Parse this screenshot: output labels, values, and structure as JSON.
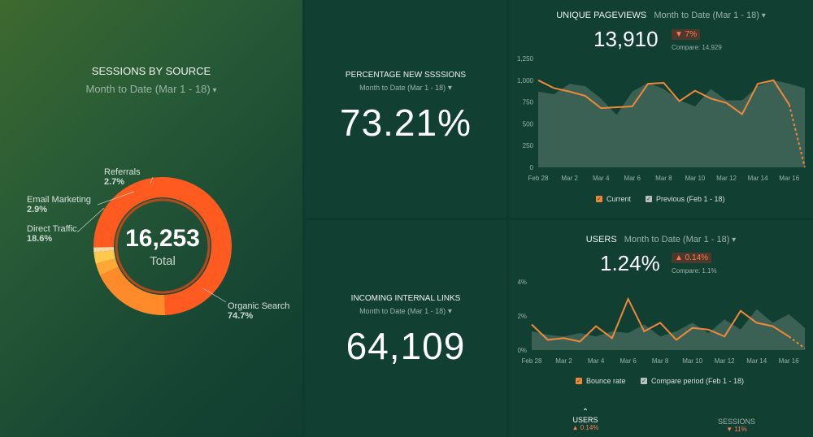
{
  "sessions_by_source": {
    "title": "SESSIONS BY SOURCE",
    "date_range": "Month to Date (Mar 1 - 18)",
    "total_value": "16,253",
    "total_label": "Total",
    "colors": {
      "organic": "#ff5a1f",
      "direct": "#ff8a2a",
      "email": "#ffa736",
      "referrals": "#ffc94d",
      "other": "#f2d7a0"
    },
    "segments": [
      {
        "name": "Organic Search",
        "percent_label": "74.7%"
      },
      {
        "name": "Direct Traffic",
        "percent_label": "18.6%"
      },
      {
        "name": "Email Marketing",
        "percent_label": "2.9%"
      },
      {
        "name": "Referrals",
        "percent_label": "2.7%"
      }
    ]
  },
  "new_sessions": {
    "title": "PERCENTAGE NEW SSSSIONS",
    "date_range": "Month to Date (Mar 1 - 18)",
    "value": "73.21%"
  },
  "internal_links": {
    "title": "INCOMING INTERNAL LINKS",
    "date_range": "Month to Date (Mar 1 - 18)",
    "value": "64,109"
  },
  "pageviews": {
    "title": "UNIQUE PAGEVIEWS",
    "date_range": "Month to Date (Mar 1 - 18)",
    "value": "13,910",
    "change": "▼ 7%",
    "compare": "Compare: 14,929",
    "legend_current": "Current",
    "legend_previous": "Previous (Feb 1 - 18)"
  },
  "users": {
    "title": "USERS",
    "date_range": "Month to Date (Mar 1 - 18)",
    "value": "1.24%",
    "change": "▲ 0.14%",
    "compare": "Compare: 1.1%",
    "legend_current": "Bounce rate",
    "legend_previous": "Compare period (Feb 1 - 18)",
    "footer": [
      {
        "label": "USERS",
        "change": "▲ 0.14%"
      },
      {
        "label": "SESSIONS",
        "change": "▼ 11%"
      }
    ]
  },
  "chart_data": [
    {
      "type": "pie",
      "title": "SESSIONS BY SOURCE",
      "categories": [
        "Organic Search",
        "Direct Traffic",
        "Email Marketing",
        "Referrals",
        "Other"
      ],
      "values": [
        74.7,
        18.6,
        2.9,
        2.7,
        1.1
      ],
      "total": 16253
    },
    {
      "type": "line",
      "title": "UNIQUE PAGEVIEWS",
      "x": [
        "Feb 28",
        "Mar 1",
        "Mar 2",
        "Mar 3",
        "Mar 4",
        "Mar 5",
        "Mar 6",
        "Mar 7",
        "Mar 8",
        "Mar 9",
        "Mar 10",
        "Mar 11",
        "Mar 12",
        "Mar 13",
        "Mar 14",
        "Mar 15",
        "Mar 16",
        "Mar 17"
      ],
      "tick_labels": [
        "Feb 28",
        "Mar 2",
        "Mar 4",
        "Mar 6",
        "Mar 8",
        "Mar 10",
        "Mar 12",
        "Mar 14",
        "Mar 16"
      ],
      "ylim": [
        0,
        1250
      ],
      "yticks": [
        "0",
        "250",
        "500",
        "750",
        "1,000",
        "1,250"
      ],
      "series": [
        {
          "name": "Current",
          "values": [
            1000,
            910,
            870,
            820,
            680,
            690,
            700,
            960,
            970,
            760,
            880,
            790,
            740,
            610,
            960,
            1000,
            720,
            0
          ]
        },
        {
          "name": "Previous (Feb 1 - 18)",
          "values": [
            870,
            840,
            960,
            930,
            790,
            600,
            870,
            970,
            900,
            770,
            700,
            900,
            770,
            770,
            930,
            1000,
            960,
            910
          ]
        }
      ],
      "projected_from_index": 16
    },
    {
      "type": "line",
      "title": "USERS",
      "x": [
        "Feb 28",
        "Mar 1",
        "Mar 2",
        "Mar 3",
        "Mar 4",
        "Mar 5",
        "Mar 6",
        "Mar 7",
        "Mar 8",
        "Mar 9",
        "Mar 10",
        "Mar 11",
        "Mar 12",
        "Mar 13",
        "Mar 14",
        "Mar 15",
        "Mar 16",
        "Mar 17"
      ],
      "tick_labels": [
        "Feb 28",
        "Mar 2",
        "Mar 4",
        "Mar 6",
        "Mar 8",
        "Mar 10",
        "Mar 12",
        "Mar 14",
        "Mar 16"
      ],
      "ylim": [
        0,
        4
      ],
      "yticks": [
        "0%",
        "2%",
        "4%"
      ],
      "series": [
        {
          "name": "Bounce rate",
          "values": [
            1.5,
            0.6,
            0.7,
            0.5,
            1.4,
            0.7,
            3.0,
            1.1,
            1.6,
            0.6,
            1.3,
            1.2,
            0.8,
            2.3,
            1.6,
            1.4,
            0.8,
            0.1
          ]
        },
        {
          "name": "Compare period (Feb 1 - 18)",
          "values": [
            1.1,
            0.9,
            0.8,
            1.0,
            0.8,
            1.1,
            1.0,
            1.5,
            0.8,
            1.1,
            1.6,
            1.0,
            1.8,
            1.2,
            2.4,
            1.6,
            2.1,
            1.3
          ]
        }
      ],
      "projected_from_index": 16
    }
  ]
}
